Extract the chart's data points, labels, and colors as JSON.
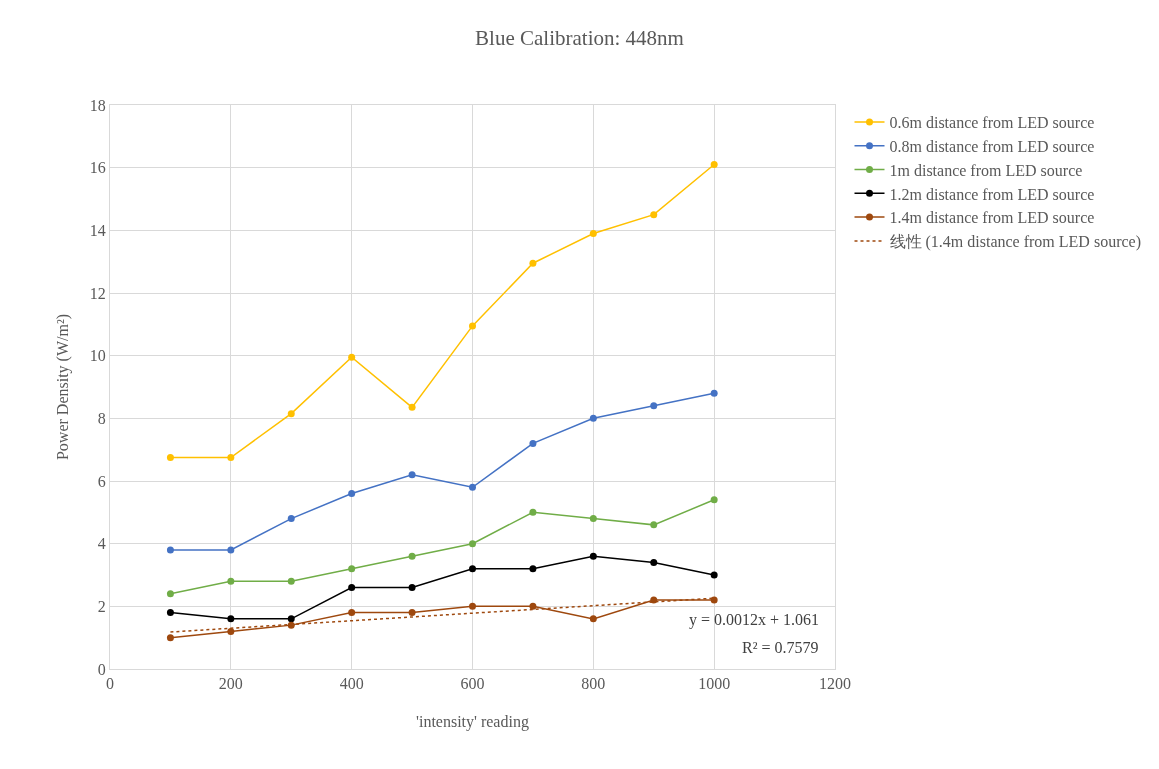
{
  "chart_data": {
    "type": "line",
    "title": "Blue Calibration: 448nm",
    "xlabel": "'intensity' reading",
    "ylabel": "Power Density (W/m²)",
    "x": [
      100,
      200,
      300,
      400,
      500,
      600,
      700,
      800,
      900,
      1000
    ],
    "series": [
      {
        "name": "0.6m distance from LED source",
        "color": "#ffc000",
        "values": [
          6.75,
          6.75,
          8.15,
          9.95,
          8.35,
          10.95,
          12.95,
          13.9,
          14.5,
          16.1
        ]
      },
      {
        "name": "0.8m distance from LED source",
        "color": "#4472c4",
        "values": [
          3.8,
          3.8,
          4.8,
          5.6,
          6.2,
          5.8,
          7.2,
          8.0,
          8.4,
          8.8
        ]
      },
      {
        "name": "1m distance from LED source",
        "color": "#70ad47",
        "values": [
          2.4,
          2.8,
          2.8,
          3.2,
          3.6,
          4.0,
          5.0,
          4.8,
          4.6,
          5.4
        ]
      },
      {
        "name": "1.2m distance from LED source",
        "color": "#000000",
        "values": [
          1.8,
          1.6,
          1.6,
          2.6,
          2.6,
          3.2,
          3.2,
          3.6,
          3.4,
          3.0
        ]
      },
      {
        "name": "1.4m distance from LED source",
        "color": "#9e480e",
        "values": [
          1.0,
          1.2,
          1.4,
          1.8,
          1.8,
          2.0,
          2.0,
          1.6,
          2.2,
          2.2
        ]
      },
      {
        "name": "线性 (1.4m distance from LED source)",
        "color": "#9e480e",
        "type": "line",
        "marker": "none",
        "line_style": "dotted",
        "x": [
          100,
          1000
        ],
        "values": [
          1.181,
          2.261
        ]
      }
    ],
    "annotations": [
      "y = 0.0012x + 1.061",
      "R² = 0.7579"
    ],
    "xlim": [
      0,
      1200
    ],
    "xticks": [
      0,
      200,
      400,
      600,
      800,
      1000,
      1200
    ],
    "ylim": [
      0,
      18
    ],
    "yticks": [
      0,
      2,
      4,
      6,
      8,
      10,
      12,
      14,
      16,
      18
    ],
    "grid": true,
    "legend": "right",
    "marker": "circle",
    "line_style": "solid"
  }
}
